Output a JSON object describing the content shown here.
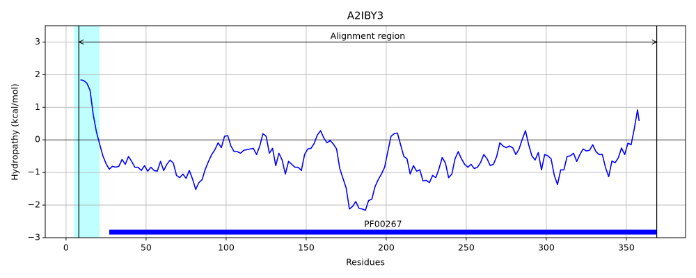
{
  "chart_data": {
    "type": "line",
    "title": "A2IBY3",
    "x_label": "Residues",
    "y_label": "Hydropathy (kcal/mol)",
    "xlim": [
      -13,
      387
    ],
    "ylim": [
      -3,
      3.5
    ],
    "xticks": [
      0,
      50,
      100,
      150,
      200,
      250,
      300,
      350
    ],
    "yticks": [
      {
        "value": -3,
        "label": "−3"
      },
      {
        "value": -2,
        "label": "−2"
      },
      {
        "value": -1,
        "label": "−1"
      },
      0,
      1,
      2,
      3
    ],
    "grid": true,
    "reference_line": 0,
    "highlight_span": [
      5,
      21
    ],
    "highlight_color": "#c0ffff",
    "alignment_region": [
      8,
      369
    ],
    "alignment_y": 3,
    "alignment_label": "Alignment region",
    "domains": [
      {
        "name": "PF00267",
        "start": 27,
        "end": 369,
        "y": -2.83,
        "color": "#0000ff"
      }
    ],
    "series": [
      {
        "color": "#0000ff",
        "x": [
          9,
          11,
          13,
          15,
          17,
          19,
          21,
          23,
          25,
          27,
          29,
          31,
          33,
          35,
          37,
          39,
          41,
          43,
          45,
          47,
          49,
          51,
          53,
          55,
          57,
          59,
          61,
          63,
          65,
          67,
          69,
          71,
          73,
          75,
          77,
          79,
          81,
          83,
          85,
          87,
          89,
          91,
          93,
          95,
          97,
          99,
          101,
          103,
          105,
          107,
          109,
          111,
          113,
          115,
          117,
          119,
          121,
          123,
          125,
          127,
          129,
          131,
          133,
          135,
          137,
          139,
          141,
          143,
          145,
          147,
          149,
          151,
          153,
          155,
          157,
          159,
          161,
          163,
          165,
          167,
          169,
          171,
          173,
          175,
          177,
          179,
          181,
          183,
          185,
          187,
          189,
          191,
          193,
          195,
          197,
          199,
          201,
          203,
          205,
          207,
          209,
          211,
          213,
          215,
          217,
          219,
          221,
          223,
          225,
          227,
          229,
          231,
          233,
          235,
          237,
          239,
          241,
          243,
          245,
          247,
          249,
          251,
          253,
          255,
          257,
          259,
          261,
          263,
          265,
          267,
          269,
          271,
          273,
          275,
          277,
          279,
          281,
          283,
          285,
          287,
          289,
          291,
          293,
          295,
          297,
          299,
          301,
          303,
          305,
          307,
          309,
          311,
          313,
          315,
          317,
          319,
          321,
          323,
          325,
          327,
          329,
          331,
          333,
          335,
          337,
          339,
          341,
          343,
          345,
          347,
          349,
          351,
          353,
          355,
          357,
          358
        ],
        "values": [
          1.84,
          1.82,
          1.74,
          1.52,
          0.77,
          0.24,
          -0.13,
          -0.49,
          -0.73,
          -0.9,
          -0.81,
          -0.84,
          -0.81,
          -0.6,
          -0.75,
          -0.51,
          -0.66,
          -0.84,
          -0.84,
          -0.94,
          -0.79,
          -0.96,
          -0.84,
          -0.94,
          -0.96,
          -0.66,
          -0.94,
          -0.75,
          -0.62,
          -0.71,
          -1.09,
          -1.16,
          -1.05,
          -1.18,
          -0.94,
          -1.2,
          -1.52,
          -1.31,
          -1.22,
          -0.9,
          -0.66,
          -0.45,
          -0.3,
          -0.09,
          -0.24,
          0.11,
          0.13,
          -0.19,
          -0.36,
          -0.36,
          -0.41,
          -0.32,
          -0.3,
          -0.28,
          -0.26,
          -0.45,
          -0.19,
          0.19,
          0.11,
          -0.41,
          -0.26,
          -0.79,
          -0.41,
          -0.62,
          -1.05,
          -0.66,
          -0.75,
          -0.84,
          -0.84,
          -0.94,
          -0.45,
          -0.28,
          -0.26,
          -0.11,
          0.15,
          0.28,
          0.06,
          -0.09,
          -0.02,
          -0.13,
          -0.28,
          -0.88,
          -1.18,
          -1.48,
          -2.12,
          -2.04,
          -1.89,
          -2.1,
          -2.12,
          -2.16,
          -1.86,
          -1.82,
          -1.44,
          -1.22,
          -1.05,
          -0.84,
          -0.36,
          0.11,
          0.19,
          0.21,
          -0.15,
          -0.51,
          -0.58,
          -1.05,
          -0.79,
          -0.96,
          -0.92,
          -1.26,
          -1.24,
          -1.31,
          -1.09,
          -1.16,
          -0.88,
          -0.54,
          -0.71,
          -1.16,
          -1.05,
          -0.58,
          -0.36,
          -0.58,
          -0.75,
          -0.84,
          -0.75,
          -0.88,
          -0.84,
          -0.69,
          -0.45,
          -0.58,
          -0.79,
          -0.75,
          -0.51,
          -0.09,
          -0.19,
          -0.24,
          -0.19,
          -0.24,
          -0.45,
          -0.28,
          0.02,
          0.28,
          -0.15,
          -0.49,
          -0.62,
          -0.39,
          -0.92,
          -0.45,
          -0.49,
          -0.58,
          -1.09,
          -1.37,
          -0.92,
          -0.92,
          -0.51,
          -0.49,
          -0.41,
          -0.66,
          -0.45,
          -0.28,
          -0.34,
          -0.32,
          -0.15,
          -0.36,
          -0.45,
          -0.45,
          -0.85,
          -1.13,
          -0.65,
          -0.7,
          -0.55,
          -0.25,
          -0.45,
          -0.1,
          -0.15,
          0.35,
          0.92,
          0.58
        ]
      }
    ]
  }
}
